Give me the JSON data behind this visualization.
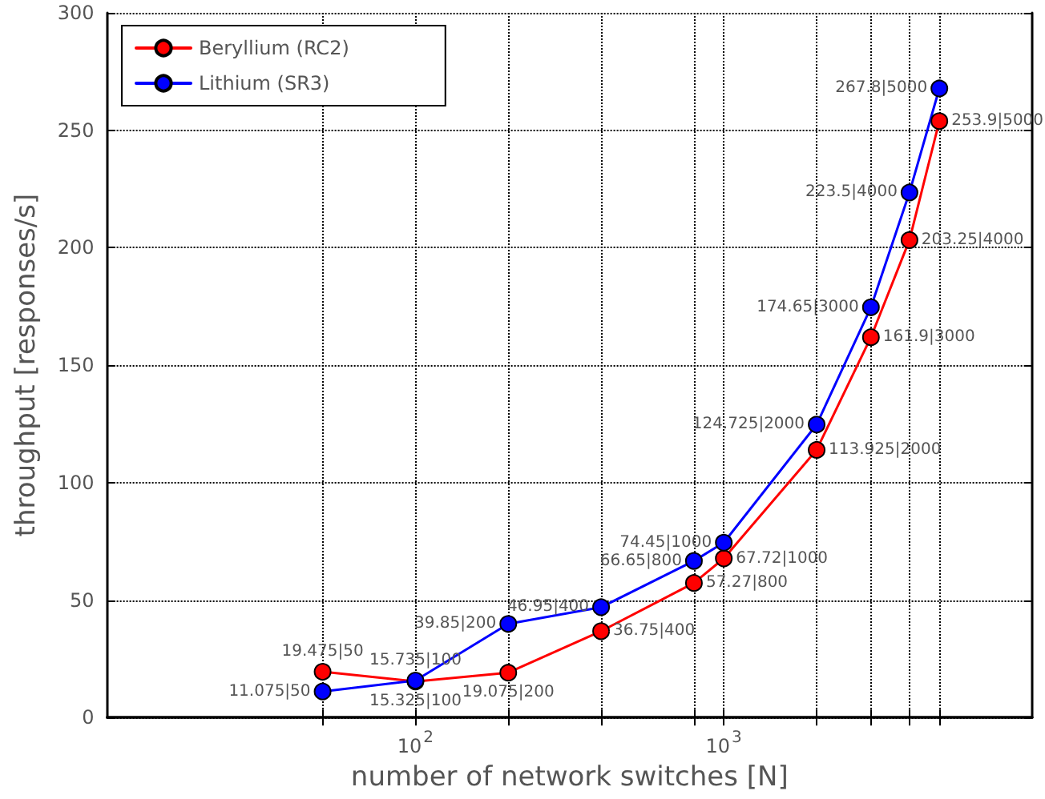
{
  "chart_data": {
    "type": "line",
    "xlabel": "number of network switches [N]",
    "ylabel": "throughput [responses/s]",
    "log": "x",
    "xlim": [
      10,
      10000
    ],
    "ylim": [
      0,
      300
    ],
    "xticks": [
      {
        "value": 50,
        "label": null
      },
      {
        "value": 100,
        "label": "10$^{2}$"
      },
      {
        "value": 200,
        "label": null
      },
      {
        "value": 400,
        "label": null
      },
      {
        "value": 800,
        "label": null
      },
      {
        "value": 1000,
        "label": "10$^{3}$"
      },
      {
        "value": 2000,
        "label": null
      },
      {
        "value": 3000,
        "label": null
      },
      {
        "value": 4000,
        "label": null
      },
      {
        "value": 5000,
        "label": null
      }
    ],
    "yticks": [
      0,
      50,
      100,
      150,
      200,
      250,
      300
    ],
    "x": [
      50,
      100,
      200,
      400,
      800,
      1000,
      2000,
      3000,
      4000,
      5000
    ],
    "series": [
      {
        "name": "Beryllium (RC2)",
        "color": "#ff0000",
        "values": [
          19.475,
          15.325,
          19.075,
          36.75,
          57.27,
          67.72,
          113.925,
          161.9,
          203.25,
          253.9
        ],
        "value_labels": [
          "19.475|50",
          "15.325|100",
          "19.075|200",
          "36.75|400",
          "57.27|800",
          "67.72|1000",
          "113.925|2000",
          "161.9|3000",
          "203.25|4000",
          "253.9|5000"
        ]
      },
      {
        "name": "Lithium (SR3)",
        "color": "#0000ff",
        "values": [
          11.075,
          15.735,
          39.85,
          46.95,
          66.65,
          74.45,
          124.725,
          174.65,
          223.5,
          267.8
        ],
        "value_labels": [
          "11.075|50",
          "15.735|100",
          "39.85|200",
          "46.95|400",
          "66.65|800",
          "74.45|1000",
          "124.725|2000",
          "174.65|3000",
          "223.5|4000",
          "267.8|5000"
        ]
      }
    ],
    "grid": true,
    "legend": "top left",
    "marker": "circle",
    "line_style": "solid"
  }
}
